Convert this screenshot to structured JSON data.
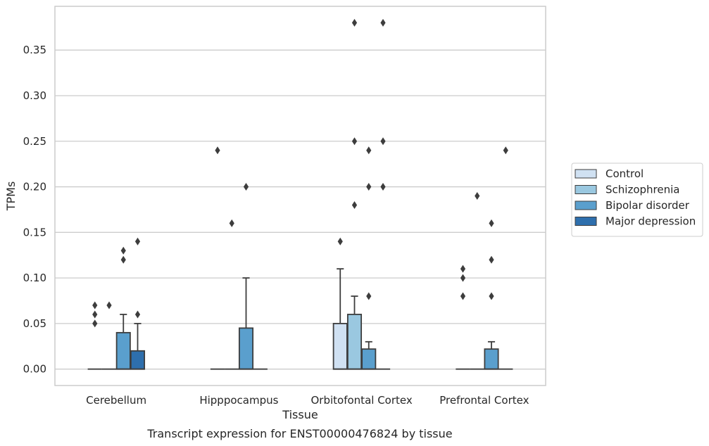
{
  "chart_data": {
    "type": "box",
    "title": "",
    "caption": "Transcript expression for ENST00000476824 by tissue",
    "xlabel": "Tissue",
    "ylabel": "TPMs",
    "ylim": [
      -0.018,
      0.398
    ],
    "yticks": [
      "0.00",
      "0.05",
      "0.10",
      "0.15",
      "0.20",
      "0.25",
      "0.30",
      "0.35"
    ],
    "ytick_values": [
      0,
      0.05,
      0.1,
      0.15,
      0.2,
      0.25,
      0.3,
      0.35
    ],
    "grid": "horizontal",
    "legend_position": "right",
    "categories": [
      "Cerebellum",
      "Hipppocampus",
      "Orbitofontal Cortex",
      "Prefrontal Cortex"
    ],
    "series": [
      {
        "name": "Control",
        "color": "#d0e1f2",
        "boxes": [
          {
            "q1": 0,
            "median": 0,
            "q3": 0,
            "whisker_low": 0,
            "whisker_high": 0,
            "outliers": [
              0.05,
              0.06,
              0.07
            ]
          },
          {
            "q1": 0,
            "median": 0,
            "q3": 0,
            "whisker_low": 0,
            "whisker_high": 0,
            "outliers": [
              0.24
            ]
          },
          {
            "q1": 0,
            "median": 0,
            "q3": 0.05,
            "whisker_low": 0,
            "whisker_high": 0.11,
            "outliers": [
              0.14
            ]
          },
          {
            "q1": 0,
            "median": 0,
            "q3": 0,
            "whisker_low": 0,
            "whisker_high": 0,
            "outliers": [
              0.08,
              0.1,
              0.11
            ]
          }
        ]
      },
      {
        "name": "Schizophrenia",
        "color": "#9ac8e0",
        "boxes": [
          {
            "q1": 0,
            "median": 0,
            "q3": 0,
            "whisker_low": 0,
            "whisker_high": 0,
            "outliers": [
              0.07
            ]
          },
          {
            "q1": 0,
            "median": 0,
            "q3": 0,
            "whisker_low": 0,
            "whisker_high": 0,
            "outliers": [
              0.16
            ]
          },
          {
            "q1": 0,
            "median": 0,
            "q3": 0.06,
            "whisker_low": 0,
            "whisker_high": 0.08,
            "outliers": [
              0.18,
              0.25,
              0.38
            ]
          },
          {
            "q1": 0,
            "median": 0,
            "q3": 0,
            "whisker_low": 0,
            "whisker_high": 0,
            "outliers": [
              0.19
            ]
          }
        ]
      },
      {
        "name": "Bipolar disorder",
        "color": "#5a9fcd",
        "boxes": [
          {
            "q1": 0,
            "median": 0,
            "q3": 0.04,
            "whisker_low": 0,
            "whisker_high": 0.06,
            "outliers": [
              0.12,
              0.13
            ]
          },
          {
            "q1": 0,
            "median": 0,
            "q3": 0.045,
            "whisker_low": 0,
            "whisker_high": 0.1,
            "outliers": [
              0.2
            ]
          },
          {
            "q1": 0,
            "median": 0,
            "q3": 0.022,
            "whisker_low": 0,
            "whisker_high": 0.03,
            "outliers": [
              0.08,
              0.2,
              0.24
            ]
          },
          {
            "q1": 0,
            "median": 0,
            "q3": 0.022,
            "whisker_low": 0,
            "whisker_high": 0.03,
            "outliers": [
              0.08,
              0.12,
              0.16
            ]
          }
        ]
      },
      {
        "name": "Major depression",
        "color": "#2e6fad",
        "boxes": [
          {
            "q1": 0,
            "median": 0,
            "q3": 0.02,
            "whisker_low": 0,
            "whisker_high": 0.05,
            "outliers": [
              0.06,
              0.14
            ]
          },
          {
            "q1": 0,
            "median": 0,
            "q3": 0,
            "whisker_low": 0,
            "whisker_high": 0,
            "outliers": []
          },
          {
            "q1": 0,
            "median": 0,
            "q3": 0,
            "whisker_low": 0,
            "whisker_high": 0,
            "outliers": [
              0.2,
              0.25,
              0.38
            ]
          },
          {
            "q1": 0,
            "median": 0,
            "q3": 0,
            "whisker_low": 0,
            "whisker_high": 0,
            "outliers": [
              0.24
            ]
          }
        ]
      }
    ]
  }
}
